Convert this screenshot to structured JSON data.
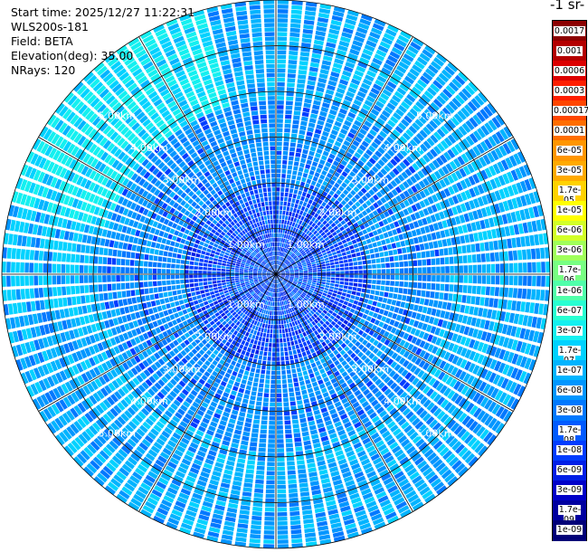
{
  "info": {
    "start_time": "Start time: 2025/12/27 11:22:31",
    "instrument": "WLS200s-181",
    "field": "Field: BETA",
    "elevation": "Elevation(deg): 35.00",
    "nrays": "NRays: 120"
  },
  "colorbar": {
    "title": "-1 sr-",
    "entries": [
      {
        "label": "0.0017",
        "color": "#8c0000"
      },
      {
        "label": "0.001",
        "color": "#b40000"
      },
      {
        "label": "0.0006",
        "color": "#dc0000"
      },
      {
        "label": "0.0003",
        "color": "#ff1e00"
      },
      {
        "label": "0.00017",
        "color": "#ff4600"
      },
      {
        "label": "0.0001",
        "color": "#ff6e00"
      },
      {
        "label": "6e-05",
        "color": "#ff9600"
      },
      {
        "label": "3e-05",
        "color": "#ffaa00"
      },
      {
        "label": "1.7e-05",
        "color": "#ffd200"
      },
      {
        "label": "1e-05",
        "color": "#ffff00"
      },
      {
        "label": "6e-06",
        "color": "#d2ff28"
      },
      {
        "label": "3e-06",
        "color": "#a0ff5a"
      },
      {
        "label": "1.7e-06",
        "color": "#78ff82"
      },
      {
        "label": "1e-06",
        "color": "#50ffaa"
      },
      {
        "label": "6e-07",
        "color": "#28ffd2"
      },
      {
        "label": "3e-07",
        "color": "#14f0f0"
      },
      {
        "label": "1.7e-07",
        "color": "#00d2ff"
      },
      {
        "label": "1e-07",
        "color": "#00b4ff"
      },
      {
        "label": "6e-08",
        "color": "#0096ff"
      },
      {
        "label": "3e-08",
        "color": "#0078ff"
      },
      {
        "label": "1.7e-08",
        "color": "#005aff"
      },
      {
        "label": "1e-08",
        "color": "#003cff"
      },
      {
        "label": "6e-09",
        "color": "#001ee6"
      },
      {
        "label": "3e-09",
        "color": "#0000c8"
      },
      {
        "label": "1.7e-09",
        "color": "#0000a0"
      },
      {
        "label": "1e-09",
        "color": "#000078"
      }
    ]
  },
  "chart_data": {
    "type": "heatmap",
    "projection": "polar",
    "field": "BETA",
    "nrays": 120,
    "max_range_km": 6.0,
    "range_rings_km": [
      1,
      2,
      3,
      4,
      5,
      6
    ],
    "ring_labels": [
      "1.00km",
      "2.00km",
      "3.00km",
      "4.00km",
      "5.00km"
    ],
    "ring_label_directions": [
      "NW",
      "NE",
      "SW",
      "SE"
    ],
    "grid": true,
    "spoke_angles_deg": [
      0,
      30,
      60,
      90,
      120,
      150,
      180,
      210,
      240,
      270,
      300,
      330
    ],
    "dominant_values": {
      "inner_ring_near_center": "3e-08",
      "middle": "6e-08",
      "outer": "1.7e-07",
      "northwest_sector_outer": "3e-07"
    }
  }
}
